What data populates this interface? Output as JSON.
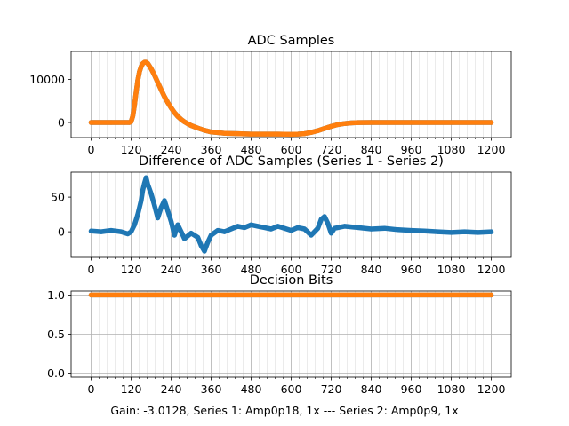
{
  "colors": {
    "series1": "#1f77b4",
    "series2": "#ff7f0e",
    "grid": "#b0b0b0",
    "axis": "#000000"
  },
  "footer_text": "Gain: -3.0128, Series 1: Amp0p18, 1x --- Series 2: Amp0p9, 1x",
  "chart_data": [
    {
      "type": "scatter",
      "title": "ADC Samples",
      "xlim": [
        -60,
        1260
      ],
      "ylim": [
        -3500,
        16500
      ],
      "xticks": [
        0,
        120,
        240,
        360,
        480,
        600,
        720,
        840,
        960,
        1080,
        1200
      ],
      "xtick_labels": [
        "0",
        "120",
        "240",
        "360",
        "480",
        "600",
        "720",
        "840",
        "960",
        "1080",
        "1200"
      ],
      "yticks": [
        0,
        10000
      ],
      "ytick_labels": [
        "0",
        "10000"
      ],
      "grid": "x-major-and-minor",
      "series": [
        {
          "color": "#1f77b4",
          "points": [
            [
              0,
              0
            ],
            [
              60,
              0
            ],
            [
              100,
              0
            ],
            [
              115,
              0
            ],
            [
              120,
              200
            ],
            [
              125,
              1500
            ],
            [
              130,
              4000
            ],
            [
              135,
              7000
            ],
            [
              140,
              9800
            ],
            [
              145,
              11800
            ],
            [
              150,
              13000
            ],
            [
              155,
              13700
            ],
            [
              160,
              14000
            ],
            [
              165,
              14000
            ],
            [
              170,
              13700
            ],
            [
              180,
              12500
            ],
            [
              190,
              11000
            ],
            [
              200,
              9300
            ],
            [
              210,
              7600
            ],
            [
              220,
              6000
            ],
            [
              230,
              4600
            ],
            [
              240,
              3400
            ],
            [
              250,
              2300
            ],
            [
              260,
              1400
            ],
            [
              270,
              700
            ],
            [
              280,
              150
            ],
            [
              290,
              -300
            ],
            [
              300,
              -700
            ],
            [
              320,
              -1300
            ],
            [
              340,
              -1800
            ],
            [
              360,
              -2200
            ],
            [
              400,
              -2500
            ],
            [
              440,
              -2600
            ],
            [
              480,
              -2700
            ],
            [
              520,
              -2700
            ],
            [
              560,
              -2700
            ],
            [
              600,
              -2750
            ],
            [
              620,
              -2700
            ],
            [
              640,
              -2600
            ],
            [
              660,
              -2300
            ],
            [
              680,
              -1900
            ],
            [
              700,
              -1400
            ],
            [
              720,
              -900
            ],
            [
              740,
              -500
            ],
            [
              760,
              -250
            ],
            [
              780,
              -100
            ],
            [
              800,
              -20
            ],
            [
              840,
              0
            ],
            [
              960,
              0
            ],
            [
              1080,
              0
            ],
            [
              1200,
              0
            ]
          ]
        },
        {
          "color": "#ff7f0e",
          "points": [
            [
              0,
              0
            ],
            [
              60,
              0
            ],
            [
              100,
              0
            ],
            [
              115,
              0
            ],
            [
              120,
              200
            ],
            [
              125,
              1500
            ],
            [
              130,
              4000
            ],
            [
              135,
              7000
            ],
            [
              140,
              9800
            ],
            [
              145,
              11800
            ],
            [
              150,
              13000
            ],
            [
              155,
              13700
            ],
            [
              160,
              14000
            ],
            [
              165,
              14000
            ],
            [
              170,
              13700
            ],
            [
              180,
              12500
            ],
            [
              190,
              11000
            ],
            [
              200,
              9300
            ],
            [
              210,
              7600
            ],
            [
              220,
              6000
            ],
            [
              230,
              4600
            ],
            [
              240,
              3400
            ],
            [
              250,
              2300
            ],
            [
              260,
              1400
            ],
            [
              270,
              700
            ],
            [
              280,
              150
            ],
            [
              290,
              -300
            ],
            [
              300,
              -700
            ],
            [
              320,
              -1300
            ],
            [
              340,
              -1800
            ],
            [
              360,
              -2200
            ],
            [
              400,
              -2500
            ],
            [
              440,
              -2600
            ],
            [
              480,
              -2700
            ],
            [
              520,
              -2700
            ],
            [
              560,
              -2700
            ],
            [
              600,
              -2750
            ],
            [
              620,
              -2700
            ],
            [
              640,
              -2600
            ],
            [
              660,
              -2300
            ],
            [
              680,
              -1900
            ],
            [
              700,
              -1400
            ],
            [
              720,
              -900
            ],
            [
              740,
              -500
            ],
            [
              760,
              -250
            ],
            [
              780,
              -100
            ],
            [
              800,
              -20
            ],
            [
              840,
              0
            ],
            [
              960,
              0
            ],
            [
              1080,
              0
            ],
            [
              1200,
              0
            ]
          ]
        }
      ]
    },
    {
      "type": "scatter",
      "title": "Difference of ADC Samples (Series 1 - Series 2)",
      "xlim": [
        -60,
        1260
      ],
      "ylim": [
        -37,
        86
      ],
      "xticks": [
        0,
        120,
        240,
        360,
        480,
        600,
        720,
        840,
        960,
        1080,
        1200
      ],
      "xtick_labels": [
        "0",
        "120",
        "240",
        "360",
        "480",
        "600",
        "720",
        "840",
        "960",
        "1080",
        "1200"
      ],
      "yticks": [
        0,
        50
      ],
      "ytick_labels": [
        "0",
        "50"
      ],
      "grid": "x-major-and-minor",
      "series": [
        {
          "color": "#1f77b4",
          "points": [
            [
              0,
              1
            ],
            [
              30,
              0
            ],
            [
              60,
              2
            ],
            [
              90,
              0
            ],
            [
              110,
              -3
            ],
            [
              120,
              0
            ],
            [
              130,
              10
            ],
            [
              140,
              25
            ],
            [
              150,
              45
            ],
            [
              155,
              60
            ],
            [
              160,
              70
            ],
            [
              165,
              78
            ],
            [
              170,
              68
            ],
            [
              180,
              55
            ],
            [
              190,
              38
            ],
            [
              200,
              20
            ],
            [
              210,
              35
            ],
            [
              220,
              45
            ],
            [
              230,
              30
            ],
            [
              240,
              15
            ],
            [
              250,
              -5
            ],
            [
              260,
              10
            ],
            [
              270,
              0
            ],
            [
              280,
              -10
            ],
            [
              300,
              -2
            ],
            [
              320,
              -8
            ],
            [
              330,
              -20
            ],
            [
              340,
              -28
            ],
            [
              350,
              -15
            ],
            [
              360,
              -5
            ],
            [
              380,
              2
            ],
            [
              400,
              0
            ],
            [
              420,
              4
            ],
            [
              440,
              8
            ],
            [
              460,
              6
            ],
            [
              480,
              10
            ],
            [
              500,
              8
            ],
            [
              520,
              6
            ],
            [
              540,
              4
            ],
            [
              560,
              8
            ],
            [
              580,
              5
            ],
            [
              600,
              2
            ],
            [
              620,
              6
            ],
            [
              640,
              4
            ],
            [
              660,
              -5
            ],
            [
              670,
              0
            ],
            [
              680,
              5
            ],
            [
              690,
              18
            ],
            [
              700,
              22
            ],
            [
              710,
              12
            ],
            [
              720,
              -2
            ],
            [
              730,
              5
            ],
            [
              760,
              8
            ],
            [
              800,
              6
            ],
            [
              840,
              4
            ],
            [
              880,
              5
            ],
            [
              920,
              3
            ],
            [
              960,
              2
            ],
            [
              1000,
              1
            ],
            [
              1040,
              0
            ],
            [
              1080,
              -1
            ],
            [
              1120,
              0
            ],
            [
              1160,
              -1
            ],
            [
              1200,
              0
            ]
          ]
        }
      ]
    },
    {
      "type": "scatter",
      "title": "Decision Bits",
      "xlim": [
        -60,
        1260
      ],
      "ylim": [
        -0.05,
        1.05
      ],
      "xticks": [
        0,
        120,
        240,
        360,
        480,
        600,
        720,
        840,
        960,
        1080,
        1200
      ],
      "xtick_labels": [
        "0",
        "120",
        "240",
        "360",
        "480",
        "600",
        "720",
        "840",
        "960",
        "1080",
        "1200"
      ],
      "yticks": [
        0.0,
        0.5,
        1.0
      ],
      "ytick_labels": [
        "0.0",
        "0.5",
        "1.0"
      ],
      "grid": "x-major-and-minor, y-major",
      "series": [
        {
          "color": "#1f77b4",
          "points": [
            [
              0,
              1
            ],
            [
              1200,
              1
            ]
          ]
        },
        {
          "color": "#ff7f0e",
          "points": [
            [
              0,
              1
            ],
            [
              1200,
              1
            ]
          ]
        }
      ]
    }
  ]
}
